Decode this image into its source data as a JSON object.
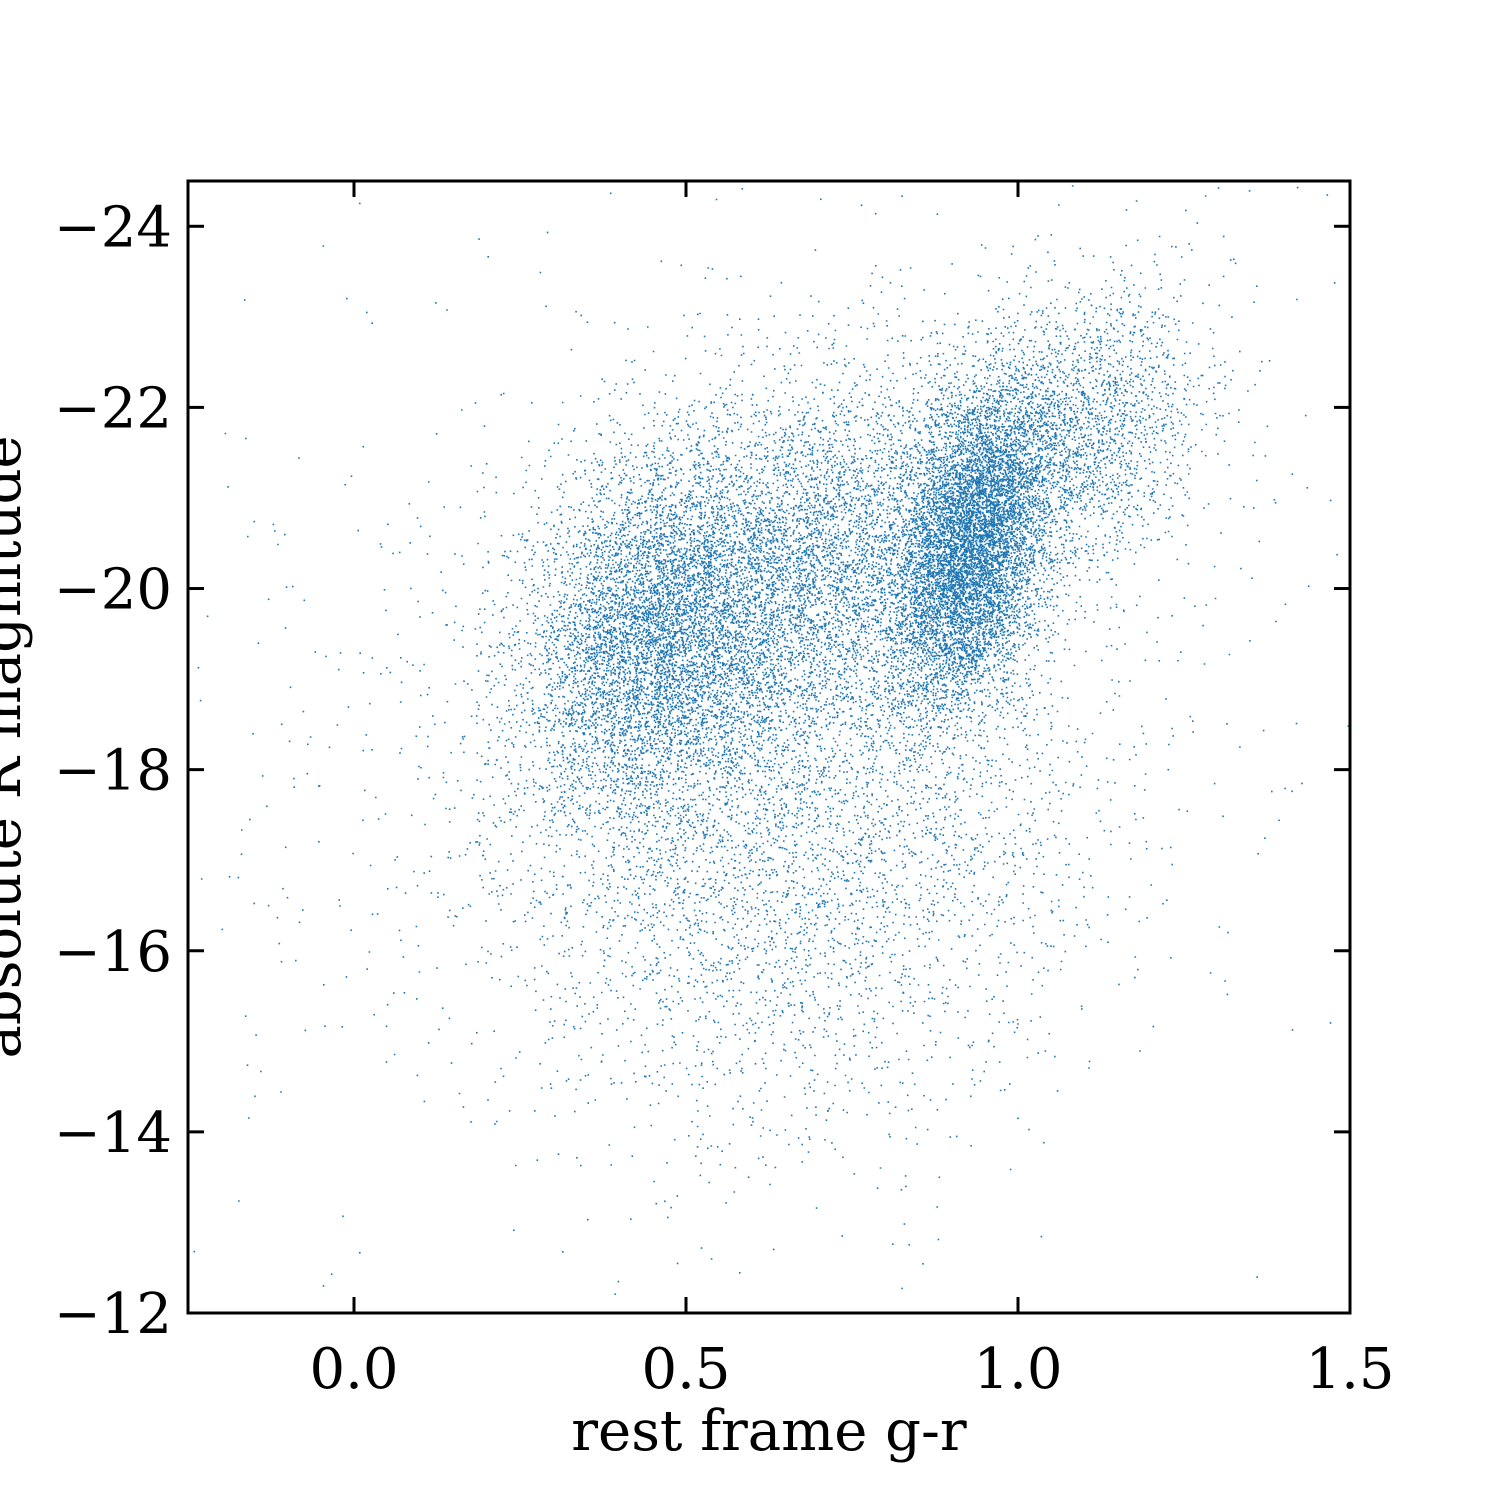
{
  "chart_data": {
    "type": "scatter",
    "title": "",
    "xlabel": "rest frame g-r",
    "ylabel": "absolute R magnitude",
    "xlim": [
      -0.25,
      1.5
    ],
    "ylim": [
      -12,
      -24.5
    ],
    "y_inverted": true,
    "x_ticks": [
      0.0,
      0.5,
      1.0,
      1.5
    ],
    "x_tick_labels": [
      "0.0",
      "0.5",
      "1.0",
      "1.5"
    ],
    "y_ticks": [
      -24,
      -22,
      -20,
      -18,
      -16,
      -14,
      -12
    ],
    "y_tick_labels": [
      "−24",
      "−22",
      "−20",
      "−18",
      "−16",
      "−14",
      "−12"
    ],
    "grid": false,
    "legend": "none",
    "tick_direction": "in",
    "point_color": "#1f77b4",
    "series": [
      {
        "components": [
          {
            "weight": 0.3,
            "x_mean": 0.93,
            "y_mean": -20.5,
            "x_sd": 0.06,
            "y_sd": 0.9,
            "corr": -0.35
          },
          {
            "weight": 0.22,
            "x_mean": 0.45,
            "y_mean": -19.6,
            "x_sd": 0.1,
            "y_sd": 1.0,
            "corr": -0.2
          },
          {
            "weight": 0.2,
            "x_mean": 0.68,
            "y_mean": -20.2,
            "x_sd": 0.14,
            "y_sd": 1.1,
            "corr": -0.3
          },
          {
            "weight": 0.08,
            "x_mean": 1.1,
            "y_mean": -21.7,
            "x_sd": 0.09,
            "y_sd": 0.8,
            "corr": -0.3
          },
          {
            "weight": 0.1,
            "x_mean": 0.55,
            "y_mean": -17.0,
            "x_sd": 0.17,
            "y_sd": 1.5,
            "corr": 0.1
          },
          {
            "weight": 0.05,
            "x_mean": 0.85,
            "y_mean": -17.5,
            "x_sd": 0.15,
            "y_sd": 1.3,
            "corr": 0.0
          },
          {
            "weight": 0.05,
            "x_mean": 0.6,
            "y_mean": -19.0,
            "x_sd": 0.45,
            "y_sd": 2.5,
            "corr": -0.2
          }
        ]
      }
    ]
  }
}
